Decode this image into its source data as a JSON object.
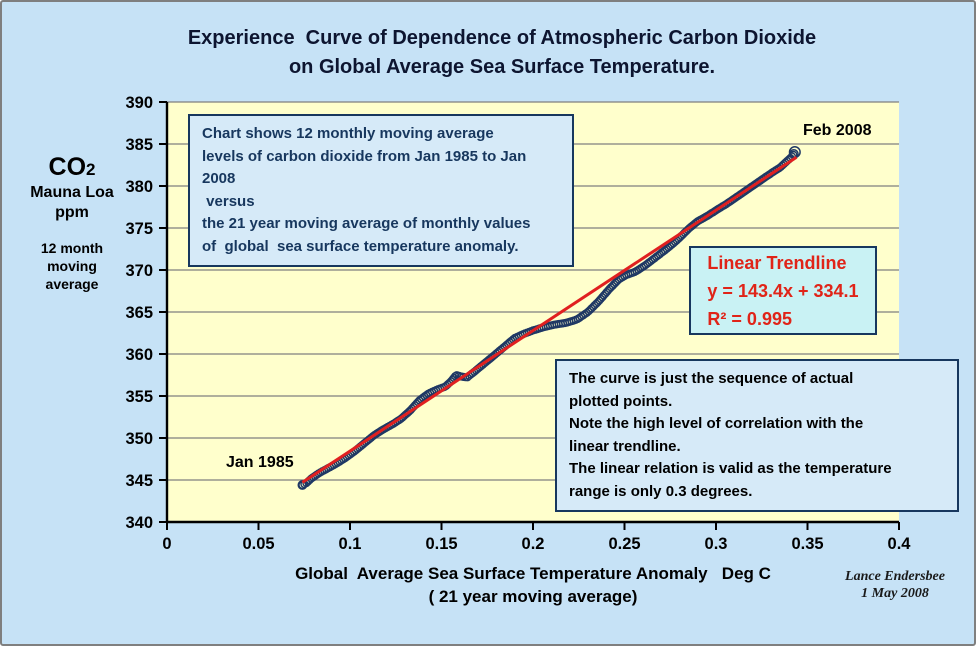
{
  "colors": {
    "frame_bg": "#c6e2f6",
    "plot_bg": "#ffffcc",
    "grid": "#7f7f7f",
    "axis": "#000000",
    "marker_navy": "#1f3864",
    "trendline_red": "#e02020",
    "note_box_bg": "#d6eaf8",
    "trend_box_bg": "#c9f2f4",
    "note_border": "#17375e",
    "trend_text_red": "#e02418"
  },
  "title": {
    "text": "Experience  Curve of Dependence of Atmospheric Carbon Dioxide\non Global Average Sea Surface Temperature."
  },
  "y_axis_label": {
    "main": "CO",
    "main_sub": "2",
    "mid_lines": [
      "Mauna Loa",
      "ppm"
    ],
    "small_lines": [
      "12 month",
      "moving",
      "average"
    ]
  },
  "x_axis_title": {
    "lines": [
      "Global  Average Sea Surface Temperature Anomaly   Deg C",
      "( 21 year moving average)"
    ]
  },
  "annotations": {
    "top_box": {
      "lines": [
        "Chart shows 12 monthly moving average",
        "levels of carbon dioxide from Jan 1985 to Jan",
        "2008",
        " versus",
        "the 21 year moving average of monthly values",
        "of  global  sea surface temperature anomaly."
      ]
    },
    "trend_box": {
      "lines": [
        "Linear Trendline",
        "y = 143.4x + 334.1",
        "R² = 0.995"
      ]
    },
    "bottom_box": {
      "lines": [
        "The curve is just the sequence of actual",
        "plotted points.",
        "Note the high level of correlation with the",
        "linear trendline.",
        "The linear relation is valid as the temperature",
        "range is only 0.3 degrees."
      ]
    },
    "start_point_label": "Jan 1985",
    "end_point_label": "Feb 2008",
    "credit": {
      "lines": [
        "Lance Endersbee",
        "1 May 2008"
      ]
    }
  },
  "chart_data": {
    "type": "scatter",
    "title": "Experience Curve of Dependence of Atmospheric Carbon Dioxide on Global Average Sea Surface Temperature.",
    "xlabel": "Global Average Sea Surface Temperature Anomaly Deg C (21 year moving average)",
    "ylabel": "CO2 Mauna Loa ppm (12 month moving average)",
    "xlim": [
      0,
      0.4
    ],
    "ylim": [
      340,
      390
    ],
    "x_tick_labels": [
      "0",
      "0.05",
      "0.1",
      "0.15",
      "0.2",
      "0.25",
      "0.3",
      "0.35",
      "0.4"
    ],
    "x_tick_values": [
      0,
      0.05,
      0.1,
      0.15,
      0.2,
      0.25,
      0.3,
      0.35,
      0.4
    ],
    "y_ticks": [
      340,
      345,
      350,
      355,
      360,
      365,
      370,
      375,
      380,
      385,
      390
    ],
    "grid": "horizontal-only",
    "legend": "none",
    "series_name": "Monthly points Jan 1985 to Feb 2008 (dense chain of open-circle markers)",
    "point_labels": [
      {
        "text": "Jan 1985",
        "x": 0.075,
        "y": 344.4
      },
      {
        "text": "Feb 2008",
        "x": 0.3425,
        "y": 383.8
      }
    ],
    "points": [
      [
        0.074,
        344.4
      ],
      [
        0.076,
        344.6
      ],
      [
        0.079,
        345.2
      ],
      [
        0.083,
        345.8
      ],
      [
        0.088,
        346.4
      ],
      [
        0.093,
        347.0
      ],
      [
        0.098,
        347.7
      ],
      [
        0.103,
        348.5
      ],
      [
        0.108,
        349.4
      ],
      [
        0.113,
        350.3
      ],
      [
        0.118,
        351.0
      ],
      [
        0.123,
        351.6
      ],
      [
        0.128,
        352.3
      ],
      [
        0.133,
        353.3
      ],
      [
        0.138,
        354.5
      ],
      [
        0.143,
        355.3
      ],
      [
        0.148,
        355.8
      ],
      [
        0.152,
        356.1
      ],
      [
        0.155,
        356.7
      ],
      [
        0.158,
        357.5
      ],
      [
        0.161,
        357.3
      ],
      [
        0.164,
        357.2
      ],
      [
        0.168,
        357.9
      ],
      [
        0.173,
        358.8
      ],
      [
        0.178,
        359.7
      ],
      [
        0.184,
        360.8
      ],
      [
        0.19,
        361.9
      ],
      [
        0.195,
        362.4
      ],
      [
        0.2,
        362.8
      ],
      [
        0.206,
        363.2
      ],
      [
        0.212,
        363.5
      ],
      [
        0.218,
        363.7
      ],
      [
        0.224,
        364.1
      ],
      [
        0.23,
        365.0
      ],
      [
        0.236,
        366.3
      ],
      [
        0.242,
        367.8
      ],
      [
        0.247,
        368.9
      ],
      [
        0.251,
        369.4
      ],
      [
        0.256,
        369.8
      ],
      [
        0.261,
        370.5
      ],
      [
        0.267,
        371.5
      ],
      [
        0.273,
        372.5
      ],
      [
        0.279,
        373.6
      ],
      [
        0.285,
        374.9
      ],
      [
        0.29,
        375.8
      ],
      [
        0.295,
        376.4
      ],
      [
        0.3,
        377.1
      ],
      [
        0.306,
        377.9
      ],
      [
        0.312,
        378.8
      ],
      [
        0.318,
        379.7
      ],
      [
        0.324,
        380.6
      ],
      [
        0.33,
        381.5
      ],
      [
        0.335,
        382.2
      ],
      [
        0.339,
        383.0
      ],
      [
        0.342,
        383.6
      ],
      [
        0.3425,
        383.8
      ]
    ],
    "trendline": {
      "equation": "y = 143.4x + 334.1",
      "r_squared": 0.995,
      "slope": 143.4,
      "intercept": 334.1,
      "x_start": 0.074,
      "x_end": 0.344,
      "color": "#e02020"
    }
  }
}
